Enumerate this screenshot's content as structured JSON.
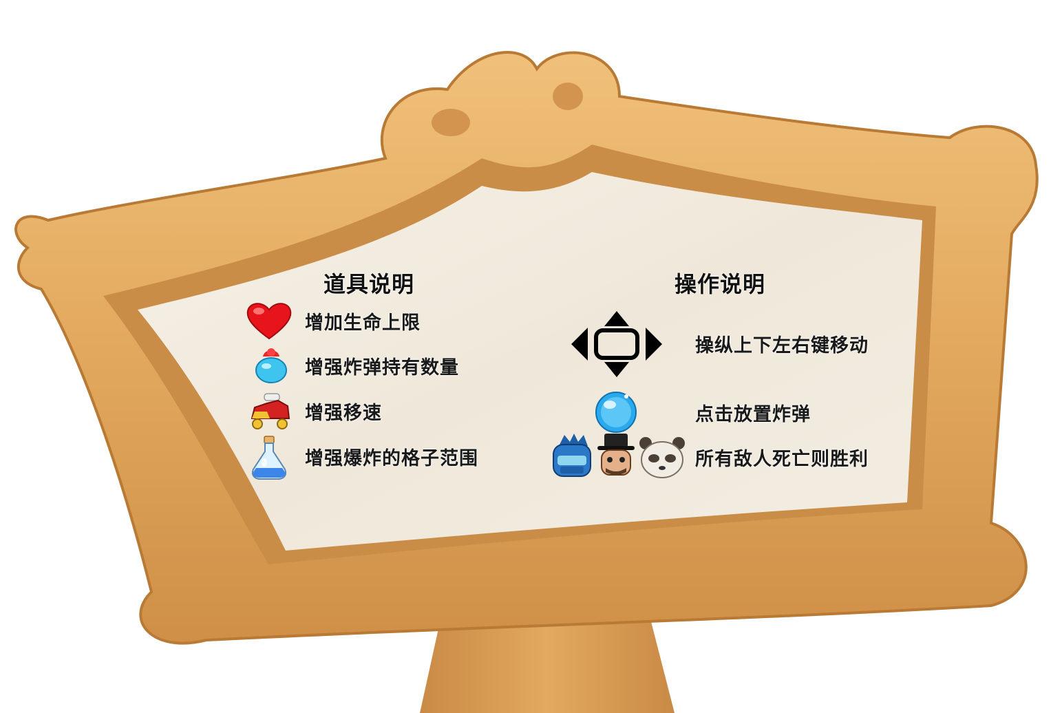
{
  "items_panel": {
    "title": "道具说明",
    "items": [
      {
        "icon": "heart-icon",
        "label": "增加生命上限"
      },
      {
        "icon": "bomb-icon",
        "label": "增强炸弹持有数量"
      },
      {
        "icon": "roller-skate-icon",
        "label": "增强移速"
      },
      {
        "icon": "potion-icon",
        "label": "增强爆炸的格子范围"
      }
    ]
  },
  "controls_panel": {
    "title": "操作说明",
    "rows": [
      {
        "icon": "arrow-keys-icon",
        "label": "操纵上下左右键移动"
      },
      {
        "icon": "blue-bubble-icon",
        "label": "点击放置炸弹"
      },
      {
        "icon": "enemies-icon",
        "label": "所有敌人死亡则胜利"
      }
    ]
  },
  "colors": {
    "frame": "#e3a85d",
    "frame_shadow": "#c07f3a",
    "board": "#f1ebe0",
    "text": "#1a1a1a"
  }
}
